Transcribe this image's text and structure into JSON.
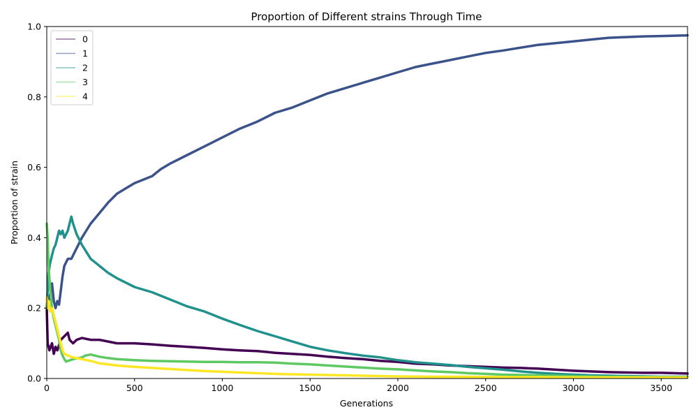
{
  "chart_data": {
    "type": "line",
    "title": "Proportion of Different strains Through Time",
    "xlabel": "Generations",
    "ylabel": "Proportion of strain",
    "xlim": [
      0,
      3650
    ],
    "ylim": [
      0,
      1.0
    ],
    "xticks": [
      0,
      500,
      1000,
      1500,
      2000,
      2500,
      3000,
      3500
    ],
    "xtick_labels": [
      "0",
      "500",
      "1000",
      "1500",
      "2000",
      "2500",
      "3000",
      "3500"
    ],
    "yticks": [
      0,
      0.2,
      0.4,
      0.6,
      0.8,
      1.0
    ],
    "ytick_labels": [
      "0.0",
      "0.2",
      "0.4",
      "0.6",
      "0.8",
      "1.0"
    ],
    "grid": false,
    "legend_position": "top-left",
    "series": [
      {
        "name": "0",
        "color": "#440154",
        "points": [
          [
            0,
            0.2
          ],
          [
            5,
            0.1
          ],
          [
            15,
            0.08
          ],
          [
            30,
            0.1
          ],
          [
            40,
            0.07
          ],
          [
            50,
            0.09
          ],
          [
            60,
            0.08
          ],
          [
            80,
            0.11
          ],
          [
            100,
            0.12
          ],
          [
            120,
            0.13
          ],
          [
            130,
            0.11
          ],
          [
            150,
            0.1
          ],
          [
            170,
            0.11
          ],
          [
            200,
            0.115
          ],
          [
            250,
            0.11
          ],
          [
            300,
            0.11
          ],
          [
            400,
            0.1
          ],
          [
            500,
            0.1
          ],
          [
            600,
            0.097
          ],
          [
            700,
            0.093
          ],
          [
            800,
            0.09
          ],
          [
            900,
            0.087
          ],
          [
            1000,
            0.083
          ],
          [
            1100,
            0.08
          ],
          [
            1200,
            0.078
          ],
          [
            1300,
            0.073
          ],
          [
            1400,
            0.07
          ],
          [
            1500,
            0.067
          ],
          [
            1600,
            0.062
          ],
          [
            1700,
            0.058
          ],
          [
            1800,
            0.055
          ],
          [
            1900,
            0.05
          ],
          [
            2000,
            0.047
          ],
          [
            2100,
            0.042
          ],
          [
            2200,
            0.04
          ],
          [
            2300,
            0.037
          ],
          [
            2400,
            0.035
          ],
          [
            2500,
            0.033
          ],
          [
            2600,
            0.031
          ],
          [
            2700,
            0.03
          ],
          [
            2800,
            0.028
          ],
          [
            2900,
            0.025
          ],
          [
            3000,
            0.022
          ],
          [
            3100,
            0.02
          ],
          [
            3200,
            0.018
          ],
          [
            3300,
            0.017
          ],
          [
            3400,
            0.016
          ],
          [
            3500,
            0.016
          ],
          [
            3650,
            0.014
          ]
        ]
      },
      {
        "name": "1",
        "color": "#3b528b",
        "points": [
          [
            0,
            0.2
          ],
          [
            10,
            0.22
          ],
          [
            20,
            0.24
          ],
          [
            30,
            0.27
          ],
          [
            40,
            0.22
          ],
          [
            50,
            0.2
          ],
          [
            60,
            0.22
          ],
          [
            70,
            0.21
          ],
          [
            80,
            0.25
          ],
          [
            90,
            0.29
          ],
          [
            100,
            0.32
          ],
          [
            120,
            0.34
          ],
          [
            140,
            0.34
          ],
          [
            160,
            0.36
          ],
          [
            180,
            0.38
          ],
          [
            200,
            0.4
          ],
          [
            250,
            0.44
          ],
          [
            300,
            0.47
          ],
          [
            350,
            0.5
          ],
          [
            400,
            0.525
          ],
          [
            450,
            0.54
          ],
          [
            500,
            0.555
          ],
          [
            550,
            0.565
          ],
          [
            600,
            0.575
          ],
          [
            650,
            0.595
          ],
          [
            700,
            0.61
          ],
          [
            800,
            0.635
          ],
          [
            900,
            0.66
          ],
          [
            1000,
            0.685
          ],
          [
            1100,
            0.71
          ],
          [
            1200,
            0.73
          ],
          [
            1300,
            0.755
          ],
          [
            1400,
            0.77
          ],
          [
            1500,
            0.79
          ],
          [
            1600,
            0.81
          ],
          [
            1700,
            0.825
          ],
          [
            1800,
            0.84
          ],
          [
            1900,
            0.855
          ],
          [
            2000,
            0.87
          ],
          [
            2100,
            0.885
          ],
          [
            2200,
            0.895
          ],
          [
            2300,
            0.905
          ],
          [
            2400,
            0.915
          ],
          [
            2500,
            0.925
          ],
          [
            2600,
            0.932
          ],
          [
            2700,
            0.94
          ],
          [
            2800,
            0.948
          ],
          [
            2900,
            0.953
          ],
          [
            3000,
            0.958
          ],
          [
            3100,
            0.963
          ],
          [
            3200,
            0.968
          ],
          [
            3300,
            0.97
          ],
          [
            3400,
            0.972
          ],
          [
            3500,
            0.973
          ],
          [
            3650,
            0.975
          ]
        ]
      },
      {
        "name": "2",
        "color": "#21918c",
        "points": [
          [
            0,
            0.2
          ],
          [
            10,
            0.3
          ],
          [
            20,
            0.33
          ],
          [
            30,
            0.35
          ],
          [
            40,
            0.37
          ],
          [
            50,
            0.38
          ],
          [
            60,
            0.4
          ],
          [
            70,
            0.42
          ],
          [
            80,
            0.41
          ],
          [
            90,
            0.42
          ],
          [
            100,
            0.4
          ],
          [
            120,
            0.42
          ],
          [
            130,
            0.44
          ],
          [
            140,
            0.46
          ],
          [
            150,
            0.44
          ],
          [
            170,
            0.41
          ],
          [
            200,
            0.38
          ],
          [
            250,
            0.34
          ],
          [
            300,
            0.32
          ],
          [
            350,
            0.3
          ],
          [
            400,
            0.285
          ],
          [
            500,
            0.26
          ],
          [
            600,
            0.245
          ],
          [
            700,
            0.225
          ],
          [
            800,
            0.205
          ],
          [
            900,
            0.19
          ],
          [
            1000,
            0.17
          ],
          [
            1100,
            0.152
          ],
          [
            1200,
            0.135
          ],
          [
            1300,
            0.12
          ],
          [
            1400,
            0.105
          ],
          [
            1500,
            0.09
          ],
          [
            1600,
            0.08
          ],
          [
            1700,
            0.072
          ],
          [
            1800,
            0.065
          ],
          [
            1900,
            0.06
          ],
          [
            2000,
            0.052
          ],
          [
            2100,
            0.046
          ],
          [
            2200,
            0.042
          ],
          [
            2300,
            0.038
          ],
          [
            2400,
            0.033
          ],
          [
            2500,
            0.029
          ],
          [
            2600,
            0.025
          ],
          [
            2700,
            0.02
          ],
          [
            2800,
            0.016
          ],
          [
            2900,
            0.013
          ],
          [
            3000,
            0.011
          ],
          [
            3100,
            0.009
          ],
          [
            3200,
            0.008
          ],
          [
            3300,
            0.007
          ],
          [
            3400,
            0.006
          ],
          [
            3500,
            0.005
          ],
          [
            3650,
            0.005
          ]
        ]
      },
      {
        "name": "3",
        "color": "#5ec962",
        "points": [
          [
            0,
            0.44
          ],
          [
            5,
            0.4
          ],
          [
            10,
            0.32
          ],
          [
            20,
            0.25
          ],
          [
            30,
            0.2
          ],
          [
            40,
            0.17
          ],
          [
            50,
            0.15
          ],
          [
            60,
            0.13
          ],
          [
            70,
            0.11
          ],
          [
            80,
            0.08
          ],
          [
            90,
            0.065
          ],
          [
            100,
            0.055
          ],
          [
            110,
            0.048
          ],
          [
            120,
            0.05
          ],
          [
            150,
            0.055
          ],
          [
            180,
            0.058
          ],
          [
            200,
            0.06
          ],
          [
            220,
            0.065
          ],
          [
            250,
            0.068
          ],
          [
            300,
            0.062
          ],
          [
            350,
            0.058
          ],
          [
            400,
            0.055
          ],
          [
            500,
            0.052
          ],
          [
            600,
            0.05
          ],
          [
            700,
            0.049
          ],
          [
            800,
            0.048
          ],
          [
            900,
            0.047
          ],
          [
            1000,
            0.047
          ],
          [
            1100,
            0.046
          ],
          [
            1200,
            0.046
          ],
          [
            1300,
            0.045
          ],
          [
            1400,
            0.042
          ],
          [
            1500,
            0.04
          ],
          [
            1600,
            0.037
          ],
          [
            1700,
            0.034
          ],
          [
            1800,
            0.031
          ],
          [
            1900,
            0.028
          ],
          [
            2000,
            0.026
          ],
          [
            2100,
            0.023
          ],
          [
            2200,
            0.02
          ],
          [
            2300,
            0.018
          ],
          [
            2400,
            0.015
          ],
          [
            2500,
            0.013
          ],
          [
            2600,
            0.011
          ],
          [
            2700,
            0.01
          ],
          [
            2800,
            0.009
          ],
          [
            2900,
            0.008
          ],
          [
            3000,
            0.007
          ],
          [
            3100,
            0.006
          ],
          [
            3200,
            0.005
          ],
          [
            3300,
            0.005
          ],
          [
            3400,
            0.004
          ],
          [
            3500,
            0.004
          ],
          [
            3650,
            0.004
          ]
        ]
      },
      {
        "name": "4",
        "color": "#fde725",
        "points": [
          [
            0,
            0.23
          ],
          [
            5,
            0.2
          ],
          [
            10,
            0.22
          ],
          [
            20,
            0.19
          ],
          [
            30,
            0.2
          ],
          [
            40,
            0.18
          ],
          [
            50,
            0.16
          ],
          [
            60,
            0.14
          ],
          [
            70,
            0.12
          ],
          [
            80,
            0.1
          ],
          [
            90,
            0.08
          ],
          [
            100,
            0.07
          ],
          [
            120,
            0.065
          ],
          [
            150,
            0.06
          ],
          [
            200,
            0.055
          ],
          [
            250,
            0.05
          ],
          [
            300,
            0.043
          ],
          [
            350,
            0.04
          ],
          [
            400,
            0.037
          ],
          [
            500,
            0.033
          ],
          [
            600,
            0.03
          ],
          [
            700,
            0.027
          ],
          [
            800,
            0.024
          ],
          [
            900,
            0.021
          ],
          [
            1000,
            0.019
          ],
          [
            1100,
            0.017
          ],
          [
            1200,
            0.015
          ],
          [
            1300,
            0.013
          ],
          [
            1400,
            0.012
          ],
          [
            1500,
            0.011
          ],
          [
            1600,
            0.01
          ],
          [
            1700,
            0.009
          ],
          [
            1800,
            0.008
          ],
          [
            1900,
            0.007
          ],
          [
            2000,
            0.006
          ],
          [
            2200,
            0.005
          ],
          [
            2400,
            0.005
          ],
          [
            2600,
            0.004
          ],
          [
            2800,
            0.004
          ],
          [
            3000,
            0.003
          ],
          [
            3200,
            0.003
          ],
          [
            3400,
            0.003
          ],
          [
            3650,
            0.003
          ]
        ]
      }
    ]
  }
}
